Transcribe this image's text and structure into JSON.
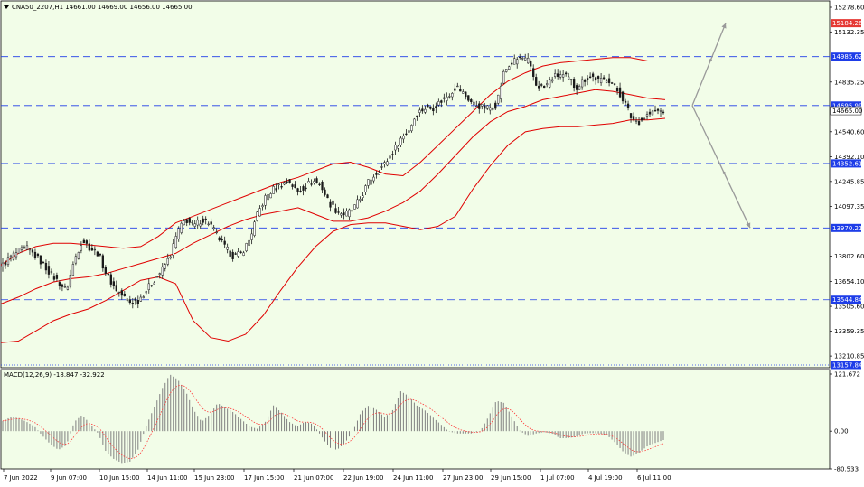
{
  "main_panel": {
    "symbol_label": "CNA50_2207,H1  14661.00 14669.00 14656.00 14665.00",
    "price_axis_ticks": [
      "15278.60",
      "15132.35",
      "14835.25",
      "14540.60",
      "14392.10",
      "14245.85",
      "14097.35",
      "13802.60",
      "13654.10",
      "13505.60",
      "13359.35",
      "13210.85"
    ],
    "levels": [
      {
        "value": "15184.26",
        "color": "#e53935",
        "style": "dash"
      },
      {
        "value": "14985.62",
        "color": "#1e3de8",
        "style": "dash"
      },
      {
        "value": "14695.99",
        "color": "#1e3de8",
        "style": "dash"
      },
      {
        "value": "14352.61",
        "color": "#1e3de8",
        "style": "dash"
      },
      {
        "value": "13970.21",
        "color": "#1e3de8",
        "style": "dash"
      },
      {
        "value": "13544.84",
        "color": "#1e3de8",
        "style": "dash"
      },
      {
        "value": "13157.84",
        "color": "#1e3de8",
        "style": "dot"
      }
    ],
    "current_price": "14665.00"
  },
  "macd_panel": {
    "label": "MACD(12,26,9) -18.847 -32.922",
    "axis_ticks": [
      "121.672",
      "0.00",
      "-80.533"
    ]
  },
  "time_axis": [
    "7 Jun 2022",
    "9 Jun 07:00",
    "10 Jun 15:00",
    "14 Jun 11:00",
    "15 Jun 23:00",
    "17 Jun 15:00",
    "21 Jun 07:00",
    "22 Jun 19:00",
    "24 Jun 11:00",
    "27 Jun 23:00",
    "29 Jun 15:00",
    "1 Jul 07:00",
    "4 Jul 19:00",
    "6 Jul 11:00"
  ],
  "colors": {
    "background": "#f2fde8",
    "candles": "#1a1a1a",
    "bollinger": "#e00000",
    "macd_hist": "#808080",
    "macd_signal": "#ff3a3a",
    "projection": "#9a9a9a"
  },
  "chart_data": {
    "type": "candlestick",
    "symbol": "CNA50_2207",
    "timeframe": "H1",
    "ylim": [
      13157.84,
      15278.6
    ],
    "macd_ylim": [
      -80.533,
      121.672
    ],
    "time_labels": [
      "7 Jun 2022",
      "9 Jun 07:00",
      "10 Jun 15:00",
      "14 Jun 11:00",
      "15 Jun 23:00",
      "17 Jun 15:00",
      "21 Jun 07:00",
      "22 Jun 19:00",
      "24 Jun 11:00",
      "27 Jun 23:00",
      "29 Jun 15:00",
      "1 Jul 07:00",
      "4 Jul 19:00",
      "6 Jul 11:00"
    ],
    "close_path": [
      13750,
      13800,
      13830,
      13850,
      13810,
      13760,
      13700,
      13650,
      13600,
      13780,
      13900,
      13850,
      13820,
      13700,
      13620,
      13570,
      13530,
      13540,
      13600,
      13660,
      13720,
      13800,
      13950,
      14020,
      13980,
      14020,
      14000,
      13920,
      13850,
      13800,
      13820,
      13900,
      14050,
      14150,
      14200,
      14230,
      14250,
      14180,
      14220,
      14250,
      14220,
      14120,
      14070,
      14050,
      14080,
      14150,
      14250,
      14300,
      14350,
      14420,
      14500,
      14550,
      14650,
      14680,
      14680,
      14720,
      14760,
      14810,
      14760,
      14710,
      14690,
      14680,
      14700,
      14900,
      14950,
      14980,
      14960,
      14820,
      14800,
      14860,
      14880,
      14860,
      14800,
      14850,
      14870,
      14840,
      14860,
      14800,
      14730,
      14620,
      14600,
      14640,
      14660,
      14665
    ],
    "bollinger": {
      "upper": [
        13750,
        13820,
        13860,
        13880,
        13880,
        13870,
        13860,
        13850,
        13860,
        13920,
        14000,
        14040,
        14080,
        14120,
        14160,
        14200,
        14240,
        14270,
        14310,
        14350,
        14360,
        14330,
        14290,
        14280,
        14360,
        14460,
        14560,
        14660,
        14760,
        14840,
        14890,
        14930,
        14950,
        14960,
        14970,
        14980,
        14980,
        14960,
        14960
      ],
      "middle": [
        13520,
        13560,
        13610,
        13650,
        13670,
        13680,
        13700,
        13730,
        13760,
        13790,
        13820,
        13880,
        13930,
        13980,
        14020,
        14050,
        14070,
        14090,
        14050,
        14010,
        14010,
        14030,
        14070,
        14120,
        14190,
        14290,
        14400,
        14510,
        14600,
        14660,
        14690,
        14730,
        14750,
        14770,
        14790,
        14780,
        14760,
        14740,
        14730
      ],
      "lower": [
        13290,
        13300,
        13360,
        13420,
        13460,
        13490,
        13540,
        13600,
        13660,
        13680,
        13640,
        13420,
        13320,
        13300,
        13340,
        13450,
        13600,
        13740,
        13860,
        13950,
        13990,
        14000,
        14000,
        13980,
        13960,
        13980,
        14040,
        14200,
        14340,
        14460,
        14540,
        14560,
        14570,
        14570,
        14580,
        14590,
        14610,
        14610,
        14620
      ]
    },
    "projection_path": [
      {
        "x": "6 Jul 11:00 + 3",
        "y": 14695.99
      },
      {
        "x": "+6",
        "y": 14985.62
      },
      {
        "x": "+9",
        "y": 15184.26
      },
      {
        "x": "+3b",
        "y": 14695.99
      },
      {
        "x": "+6b",
        "y": 14352.61
      },
      {
        "x": "+9b",
        "y": 13970.21
      }
    ],
    "macd": {
      "value": -18.847,
      "signal": -32.922,
      "histogram_profile": [
        22,
        30,
        28,
        20,
        10,
        -10,
        -28,
        -40,
        -30,
        20,
        35,
        15,
        -5,
        -45,
        -60,
        -68,
        -65,
        -40,
        10,
        50,
        90,
        121,
        110,
        85,
        45,
        20,
        35,
        60,
        50,
        40,
        25,
        10,
        5,
        20,
        55,
        40,
        20,
        10,
        20,
        15,
        -10,
        -35,
        -40,
        -25,
        0,
        40,
        55,
        45,
        30,
        45,
        85,
        75,
        55,
        45,
        30,
        15,
        0,
        -5,
        -5,
        -5,
        0,
        30,
        65,
        60,
        30,
        0,
        -10,
        -5,
        -2,
        -5,
        -15,
        -15,
        -12,
        -5,
        -4,
        -5,
        -10,
        -25,
        -45,
        -55,
        -45,
        -32,
        -25,
        -19
      ]
    }
  }
}
